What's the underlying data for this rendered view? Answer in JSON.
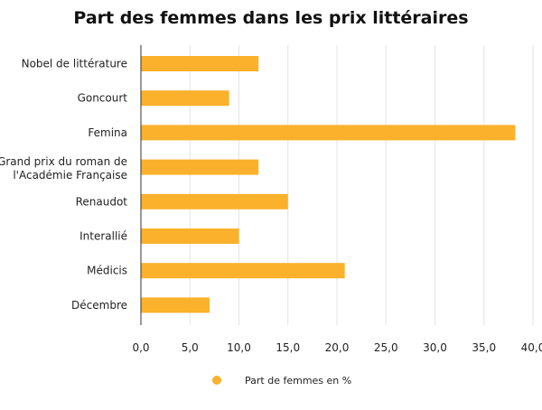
{
  "chart_data": {
    "type": "bar",
    "orientation": "horizontal",
    "title": "Part des femmes dans les prix littéraires",
    "categories": [
      "Nobel de littérature",
      "Goncourt",
      "Femina",
      "Grand prix du roman de l'Académie Française",
      "Renaudot",
      "Interallié",
      "Médicis",
      "Décembre"
    ],
    "series": [
      {
        "name": "Part de femmes en %",
        "color": "#fbb12b",
        "values": [
          12,
          9,
          38.2,
          12,
          15,
          10,
          20.8,
          7
        ]
      }
    ],
    "xlim": [
      0,
      40
    ],
    "xticks": [
      "0,0",
      "5,0",
      "10,0",
      "15,0",
      "20,0",
      "25,0",
      "30,0",
      "35,0",
      "40,0"
    ],
    "grid": "vertical",
    "legend_position": "bottom"
  }
}
